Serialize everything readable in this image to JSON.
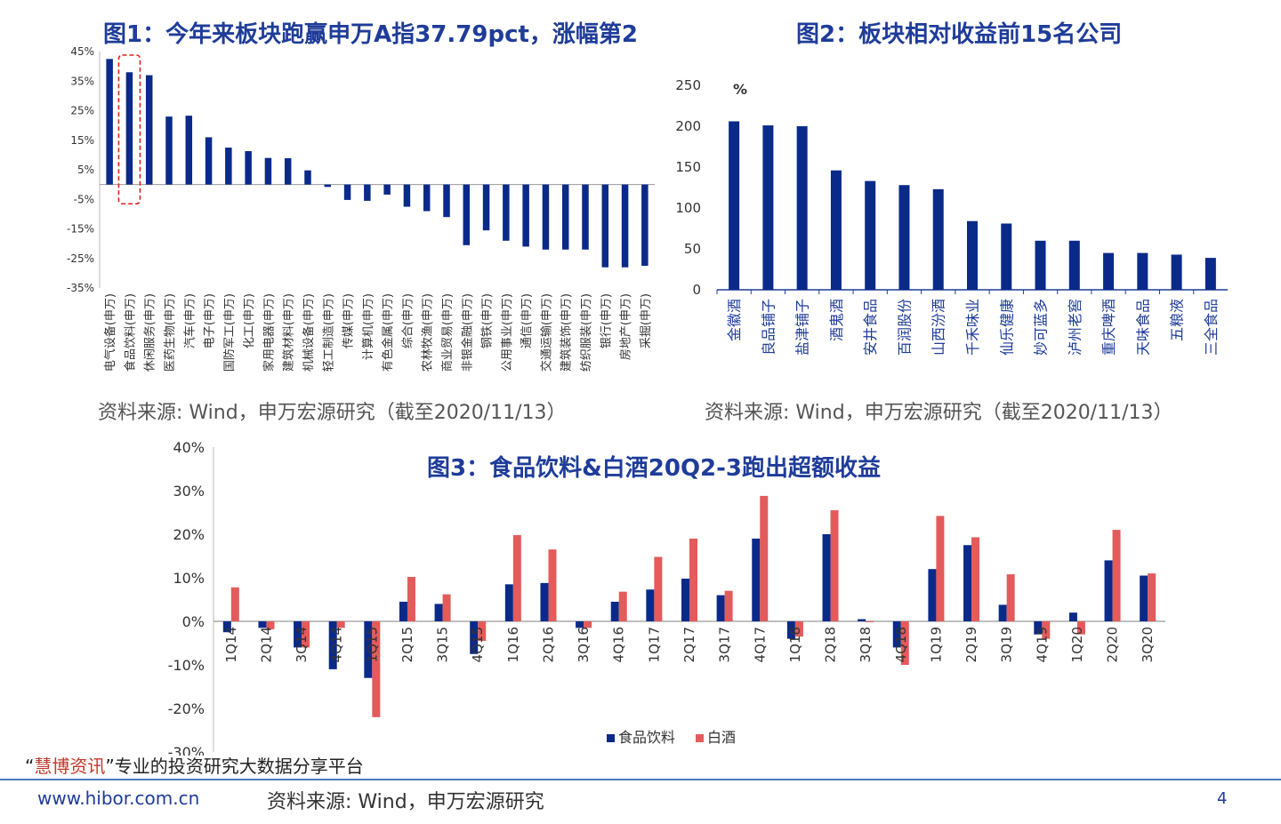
{
  "colors": {
    "navy": "#0a2a8a",
    "red": "#e35b5b",
    "title": "#1f3c99",
    "highlight": "#e02020"
  },
  "chart1": {
    "title": "图1：今年来板块跑赢申万A指37.79pct，涨幅第2",
    "source": "资料来源: Wind，申万宏源研究（截至2020/11/13）"
  },
  "chart2": {
    "title": "图2：板块相对收益前15名公司",
    "source": "资料来源: Wind，申万宏源研究（截至2020/11/13）"
  },
  "chart3": {
    "title": "图3：食品饮料&白酒20Q2-3跑出超额收益"
  },
  "footer": {
    "quote_open": "“",
    "brand": "慧博资讯",
    "quote_close": "”",
    "tagline": "专业的投资研究大数据分享平台",
    "url": "www.hibor.com.cn",
    "source": "资料来源: Wind，申万宏源研究",
    "page": "4"
  },
  "chart_data": [
    {
      "type": "bar",
      "title": "图1：今年来板块跑赢申万A指37.79pct，涨幅第2",
      "ylim": [
        -35,
        45
      ],
      "yticks": [
        "45%",
        "35%",
        "25%",
        "15%",
        "5%",
        "-5%",
        "-15%",
        "-25%",
        "-35%"
      ],
      "ytick_values": [
        45,
        35,
        25,
        15,
        5,
        -5,
        -15,
        -25,
        -35
      ],
      "categories": [
        "电气设备(申万)",
        "食品饮料(申万)",
        "休闲服务(申万)",
        "医药生物(申万)",
        "汽车(申万)",
        "电子(申万)",
        "国防军工(申万)",
        "化工(申万)",
        "家用电器(申万)",
        "建筑材料(申万)",
        "机械设备(申万)",
        "轻工制造(申万)",
        "传媒(申万)",
        "计算机(申万)",
        "有色金属(申万)",
        "综合(申万)",
        "农林牧渔(申万)",
        "商业贸易(申万)",
        "非银金融(申万)",
        "钢铁(申万)",
        "公用事业(申万)",
        "通信(申万)",
        "交通运输(申万)",
        "建筑装饰(申万)",
        "纺织服装(申万)",
        "银行(申万)",
        "房地产(申万)",
        "采掘(申万)"
      ],
      "values": [
        42.5,
        38,
        37,
        23,
        23.3,
        16,
        12.5,
        11.3,
        9,
        8.9,
        4.8,
        -0.8,
        -5.2,
        -5.5,
        -3.4,
        -7.5,
        -9,
        -11,
        -20.5,
        -15.5,
        -19,
        -21,
        -22,
        -22,
        -22,
        -28,
        -28,
        -27.5
      ],
      "highlight_index": 1
    },
    {
      "type": "bar",
      "title": "图2：板块相对收益前15名公司",
      "ylabel": "%",
      "ylim": [
        0,
        250
      ],
      "yticks": [
        "250",
        "200",
        "150",
        "100",
        "50",
        "0"
      ],
      "ytick_values": [
        250,
        200,
        150,
        100,
        50,
        0
      ],
      "categories": [
        "金徽酒",
        "良品铺子",
        "盐津铺子",
        "酒鬼酒",
        "安井食品",
        "百润股份",
        "山西汾酒",
        "千禾味业",
        "仙乐健康",
        "妙可蓝多",
        "泸州老窖",
        "重庆啤酒",
        "天味食品",
        "五粮液",
        "三全食品"
      ],
      "values": [
        206,
        201,
        200,
        146,
        133,
        128,
        123,
        84,
        81,
        60,
        60,
        45,
        45,
        43,
        39
      ]
    },
    {
      "type": "bar",
      "title": "图3：食品饮料&白酒20Q2-3跑出超额收益",
      "ylim": [
        -30,
        40
      ],
      "yticks": [
        "40%",
        "30%",
        "20%",
        "10%",
        "0%",
        "-10%",
        "-20%",
        "-30%"
      ],
      "ytick_values": [
        40,
        30,
        20,
        10,
        0,
        -10,
        -20,
        -30
      ],
      "categories": [
        "1Q14",
        "2Q14",
        "3Q14",
        "4Q14",
        "1Q15",
        "2Q15",
        "3Q15",
        "4Q15",
        "1Q16",
        "2Q16",
        "3Q16",
        "4Q16",
        "1Q17",
        "2Q17",
        "3Q17",
        "4Q17",
        "1Q18",
        "2Q18",
        "3Q18",
        "4Q18",
        "1Q19",
        "2Q19",
        "3Q19",
        "4Q19",
        "1Q20",
        "2Q20",
        "3Q20"
      ],
      "legend": "bottom-center",
      "series": [
        {
          "name": "食品饮料",
          "values": [
            -2.5,
            -1.5,
            -6,
            -11,
            -13,
            4.5,
            4,
            -7.5,
            8.5,
            8.8,
            -1.5,
            4.5,
            7.3,
            9.8,
            6,
            19,
            -4,
            20,
            0.5,
            -6,
            12,
            17.5,
            3.8,
            -3,
            2,
            14,
            10.5
          ]
        },
        {
          "name": "白酒",
          "values": [
            7.8,
            -1.8,
            -6,
            -1.5,
            -22,
            10.2,
            6.2,
            -4.5,
            19.8,
            16.5,
            -1.5,
            6.8,
            14.8,
            19,
            7,
            28.8,
            -3.5,
            25.5,
            0,
            -10,
            24.2,
            19.3,
            10.8,
            -4,
            -3,
            21,
            11
          ]
        }
      ]
    }
  ]
}
